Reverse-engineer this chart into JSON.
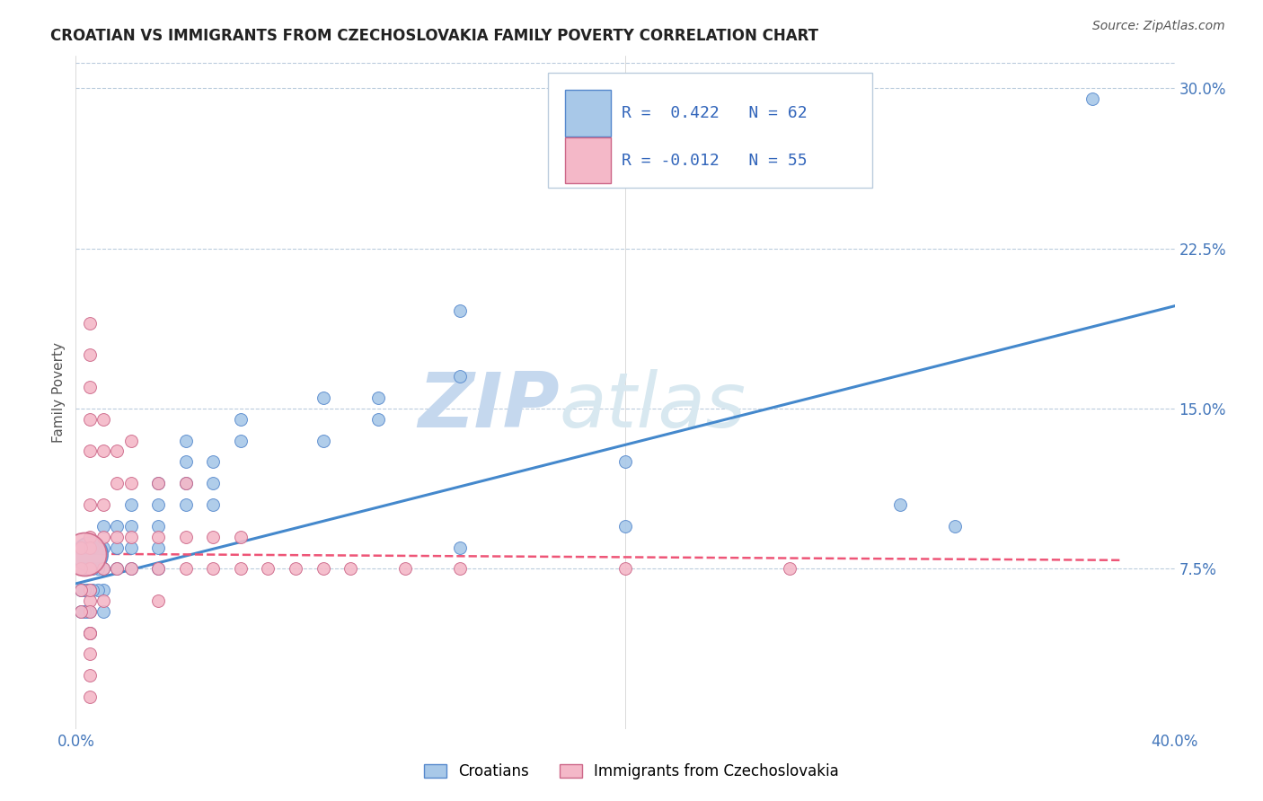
{
  "title": "CROATIAN VS IMMIGRANTS FROM CZECHOSLOVAKIA FAMILY POVERTY CORRELATION CHART",
  "source": "Source: ZipAtlas.com",
  "ylabel": "Family Poverty",
  "x_min": 0.0,
  "x_max": 0.4,
  "y_min": 0.0,
  "y_max": 0.315,
  "x_tick_labels": [
    "0.0%",
    "40.0%"
  ],
  "y_ticks_right": [
    0.075,
    0.15,
    0.225,
    0.3
  ],
  "y_tick_labels_right": [
    "7.5%",
    "15.0%",
    "22.5%",
    "30.0%"
  ],
  "legend_r1": "R =  0.422   N = 62",
  "legend_r2": "R = -0.012   N = 55",
  "legend_labels_bottom": [
    "Croatians",
    "Immigrants from Czechoslovakia"
  ],
  "blue_color": "#a8c8e8",
  "pink_color": "#f4b8c8",
  "blue_edge": "#5588cc",
  "pink_edge": "#cc6688",
  "trend_blue": "#4488cc",
  "trend_pink": "#ee5577",
  "watermark": "ZIP",
  "watermark2": "atlas",
  "watermark_color": "#c5d8ee",
  "blue_scatter_x": [
    0.37,
    0.24,
    0.14,
    0.14,
    0.11,
    0.11,
    0.09,
    0.09,
    0.06,
    0.06,
    0.05,
    0.05,
    0.05,
    0.04,
    0.04,
    0.04,
    0.04,
    0.03,
    0.03,
    0.03,
    0.03,
    0.03,
    0.02,
    0.02,
    0.02,
    0.02,
    0.015,
    0.015,
    0.015,
    0.01,
    0.01,
    0.01,
    0.01,
    0.01,
    0.008,
    0.008,
    0.008,
    0.006,
    0.006,
    0.006,
    0.005,
    0.005,
    0.005,
    0.005,
    0.005,
    0.004,
    0.004,
    0.004,
    0.004,
    0.003,
    0.003,
    0.003,
    0.003,
    0.002,
    0.002,
    0.002,
    0.002,
    0.2,
    0.3,
    0.14,
    0.2,
    0.32
  ],
  "blue_scatter_y": [
    0.295,
    0.27,
    0.196,
    0.165,
    0.155,
    0.145,
    0.155,
    0.135,
    0.145,
    0.135,
    0.125,
    0.115,
    0.105,
    0.135,
    0.125,
    0.115,
    0.105,
    0.115,
    0.105,
    0.095,
    0.085,
    0.075,
    0.105,
    0.095,
    0.085,
    0.075,
    0.095,
    0.085,
    0.075,
    0.095,
    0.085,
    0.075,
    0.065,
    0.055,
    0.085,
    0.075,
    0.065,
    0.085,
    0.075,
    0.065,
    0.085,
    0.075,
    0.065,
    0.055,
    0.045,
    0.085,
    0.075,
    0.065,
    0.055,
    0.085,
    0.075,
    0.065,
    0.055,
    0.085,
    0.075,
    0.065,
    0.055,
    0.125,
    0.105,
    0.085,
    0.095,
    0.095
  ],
  "pink_scatter_x": [
    0.005,
    0.005,
    0.005,
    0.005,
    0.005,
    0.005,
    0.005,
    0.005,
    0.005,
    0.005,
    0.01,
    0.01,
    0.01,
    0.01,
    0.01,
    0.01,
    0.015,
    0.015,
    0.015,
    0.015,
    0.02,
    0.02,
    0.02,
    0.02,
    0.03,
    0.03,
    0.03,
    0.03,
    0.04,
    0.04,
    0.04,
    0.05,
    0.05,
    0.06,
    0.06,
    0.07,
    0.08,
    0.09,
    0.1,
    0.12,
    0.14,
    0.2,
    0.26,
    0.005,
    0.005,
    0.005,
    0.005,
    0.005,
    0.005,
    0.005,
    0.005,
    0.002,
    0.002,
    0.002,
    0.002
  ],
  "pink_scatter_y": [
    0.19,
    0.175,
    0.16,
    0.145,
    0.13,
    0.105,
    0.09,
    0.075,
    0.06,
    0.045,
    0.145,
    0.13,
    0.105,
    0.09,
    0.075,
    0.06,
    0.13,
    0.115,
    0.09,
    0.075,
    0.135,
    0.115,
    0.09,
    0.075,
    0.115,
    0.09,
    0.075,
    0.06,
    0.115,
    0.09,
    0.075,
    0.09,
    0.075,
    0.09,
    0.075,
    0.075,
    0.075,
    0.075,
    0.075,
    0.075,
    0.075,
    0.075,
    0.075,
    0.085,
    0.075,
    0.065,
    0.055,
    0.045,
    0.035,
    0.025,
    0.015,
    0.085,
    0.075,
    0.065,
    0.055
  ],
  "blue_trend_x": [
    0.0,
    0.4
  ],
  "blue_trend_y": [
    0.068,
    0.198
  ],
  "pink_trend_x": [
    0.0,
    0.38
  ],
  "pink_trend_y": [
    0.082,
    0.079
  ]
}
